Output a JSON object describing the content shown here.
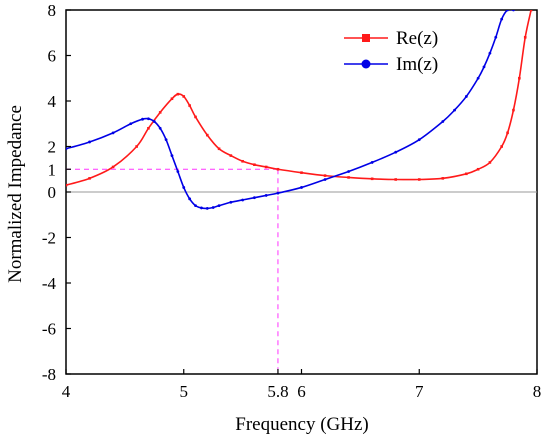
{
  "chart_data": {
    "type": "line",
    "title": "",
    "xlabel": "Frequency (GHz)",
    "ylabel": "Normalized Impedance",
    "xlim": [
      4,
      8
    ],
    "ylim": [
      -8,
      8
    ],
    "x_ticks": [
      4,
      5,
      5.8,
      6,
      7,
      8
    ],
    "x_tick_labels": [
      "4",
      "5",
      "5.8",
      "6",
      "7",
      "8"
    ],
    "y_ticks": [
      -8,
      -6,
      -4,
      -2,
      0,
      1,
      2,
      4,
      6,
      8
    ],
    "y_tick_labels": [
      "-8",
      "-6",
      "-4",
      "-2",
      "0",
      "1",
      "2",
      "4",
      "6",
      "8"
    ],
    "legend_position": "top-right",
    "reference_lines": {
      "zero_line": {
        "y": 0,
        "color": "#9a9a9a"
      },
      "marker_lines": {
        "x": 5.8,
        "y": 1,
        "color": "#ff33ff",
        "style": "dashed"
      }
    },
    "series": [
      {
        "name": "Re(z)",
        "color": "#ff1a1a",
        "marker": "square",
        "x": [
          4.0,
          4.2,
          4.4,
          4.6,
          4.7,
          4.8,
          4.9,
          4.95,
          5.0,
          5.05,
          5.1,
          5.2,
          5.3,
          5.4,
          5.5,
          5.6,
          5.7,
          5.8,
          6.0,
          6.2,
          6.4,
          6.6,
          6.8,
          7.0,
          7.2,
          7.4,
          7.5,
          7.6,
          7.7,
          7.75,
          7.8,
          7.85,
          7.9,
          7.95
        ],
        "y": [
          0.3,
          0.6,
          1.1,
          2.0,
          2.8,
          3.5,
          4.1,
          4.3,
          4.2,
          3.8,
          3.3,
          2.5,
          1.9,
          1.6,
          1.35,
          1.2,
          1.1,
          1.0,
          0.85,
          0.72,
          0.64,
          0.58,
          0.55,
          0.55,
          0.6,
          0.8,
          1.0,
          1.3,
          2.0,
          2.6,
          3.6,
          5.0,
          6.8,
          8.0
        ]
      },
      {
        "name": "Im(z)",
        "color": "#0000e6",
        "marker": "circle",
        "x": [
          4.0,
          4.2,
          4.4,
          4.55,
          4.65,
          4.7,
          4.75,
          4.8,
          4.85,
          4.9,
          4.95,
          5.0,
          5.05,
          5.1,
          5.15,
          5.2,
          5.25,
          5.3,
          5.4,
          5.5,
          5.6,
          5.7,
          5.8,
          6.0,
          6.2,
          6.4,
          6.6,
          6.8,
          7.0,
          7.2,
          7.3,
          7.4,
          7.5,
          7.55,
          7.6,
          7.65,
          7.7,
          7.75,
          7.8
        ],
        "y": [
          1.9,
          2.2,
          2.6,
          3.0,
          3.2,
          3.22,
          3.1,
          2.8,
          2.3,
          1.6,
          0.9,
          0.2,
          -0.3,
          -0.6,
          -0.7,
          -0.72,
          -0.68,
          -0.6,
          -0.45,
          -0.35,
          -0.25,
          -0.15,
          -0.05,
          0.2,
          0.55,
          0.9,
          1.3,
          1.75,
          2.3,
          3.1,
          3.6,
          4.2,
          5.0,
          5.5,
          6.1,
          6.8,
          7.6,
          8.0,
          8.0
        ]
      }
    ]
  }
}
